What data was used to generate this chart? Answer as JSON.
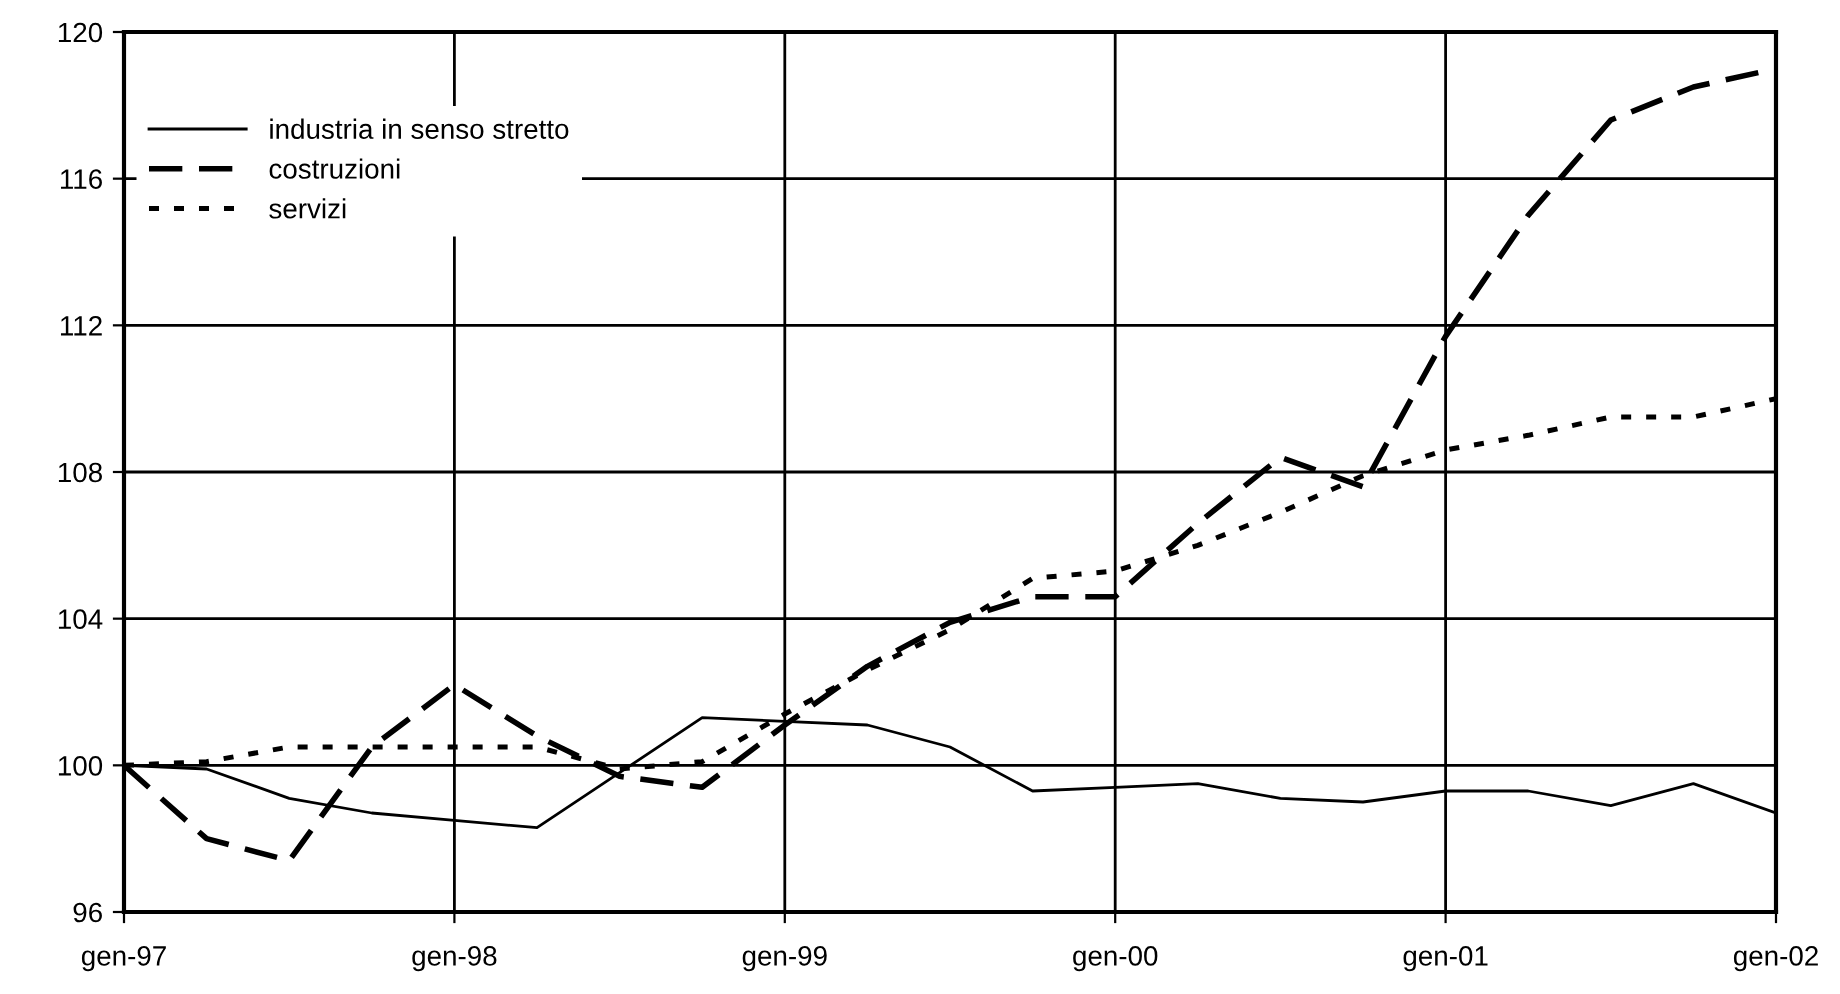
{
  "chart_data": {
    "type": "line",
    "categories": [
      "gen-97",
      null,
      null,
      null,
      "gen-98",
      null,
      null,
      null,
      "gen-99",
      null,
      null,
      null,
      "gen-00",
      null,
      null,
      null,
      "gen-01",
      null,
      null,
      null,
      "gen-02"
    ],
    "series": [
      {
        "name": "industria in senso stretto",
        "color": "#000000",
        "line_style": "solid",
        "values": [
          100,
          99.9,
          99.1,
          98.7,
          98.5,
          98.3,
          99.8,
          101.3,
          101.2,
          101.1,
          100.5,
          99.3,
          99.4,
          99.5,
          99.1,
          99.0,
          99.3,
          99.3,
          98.9,
          99.5,
          98.7
        ]
      },
      {
        "name": "costruzioni",
        "color": "#000000",
        "line_style": "dashed",
        "values": [
          100,
          98.0,
          97.4,
          100.5,
          102.2,
          100.8,
          99.7,
          99.4,
          101.1,
          102.7,
          103.9,
          104.6,
          104.6,
          106.6,
          108.4,
          107.6,
          111.7,
          115.0,
          117.6,
          118.5,
          119.0
        ]
      },
      {
        "name": "servizi",
        "color": "#000000",
        "line_style": "dotted",
        "values": [
          100,
          100.1,
          100.5,
          100.5,
          100.5,
          100.5,
          99.9,
          100.1,
          101.4,
          102.6,
          103.7,
          105.1,
          105.3,
          106.0,
          106.9,
          107.9,
          108.6,
          109.0,
          109.5,
          109.5,
          110.0
        ]
      }
    ],
    "ylim": [
      96,
      120
    ],
    "yticks": [
      96,
      100,
      104,
      108,
      112,
      116,
      120
    ],
    "grid": true,
    "legend": "top left"
  }
}
